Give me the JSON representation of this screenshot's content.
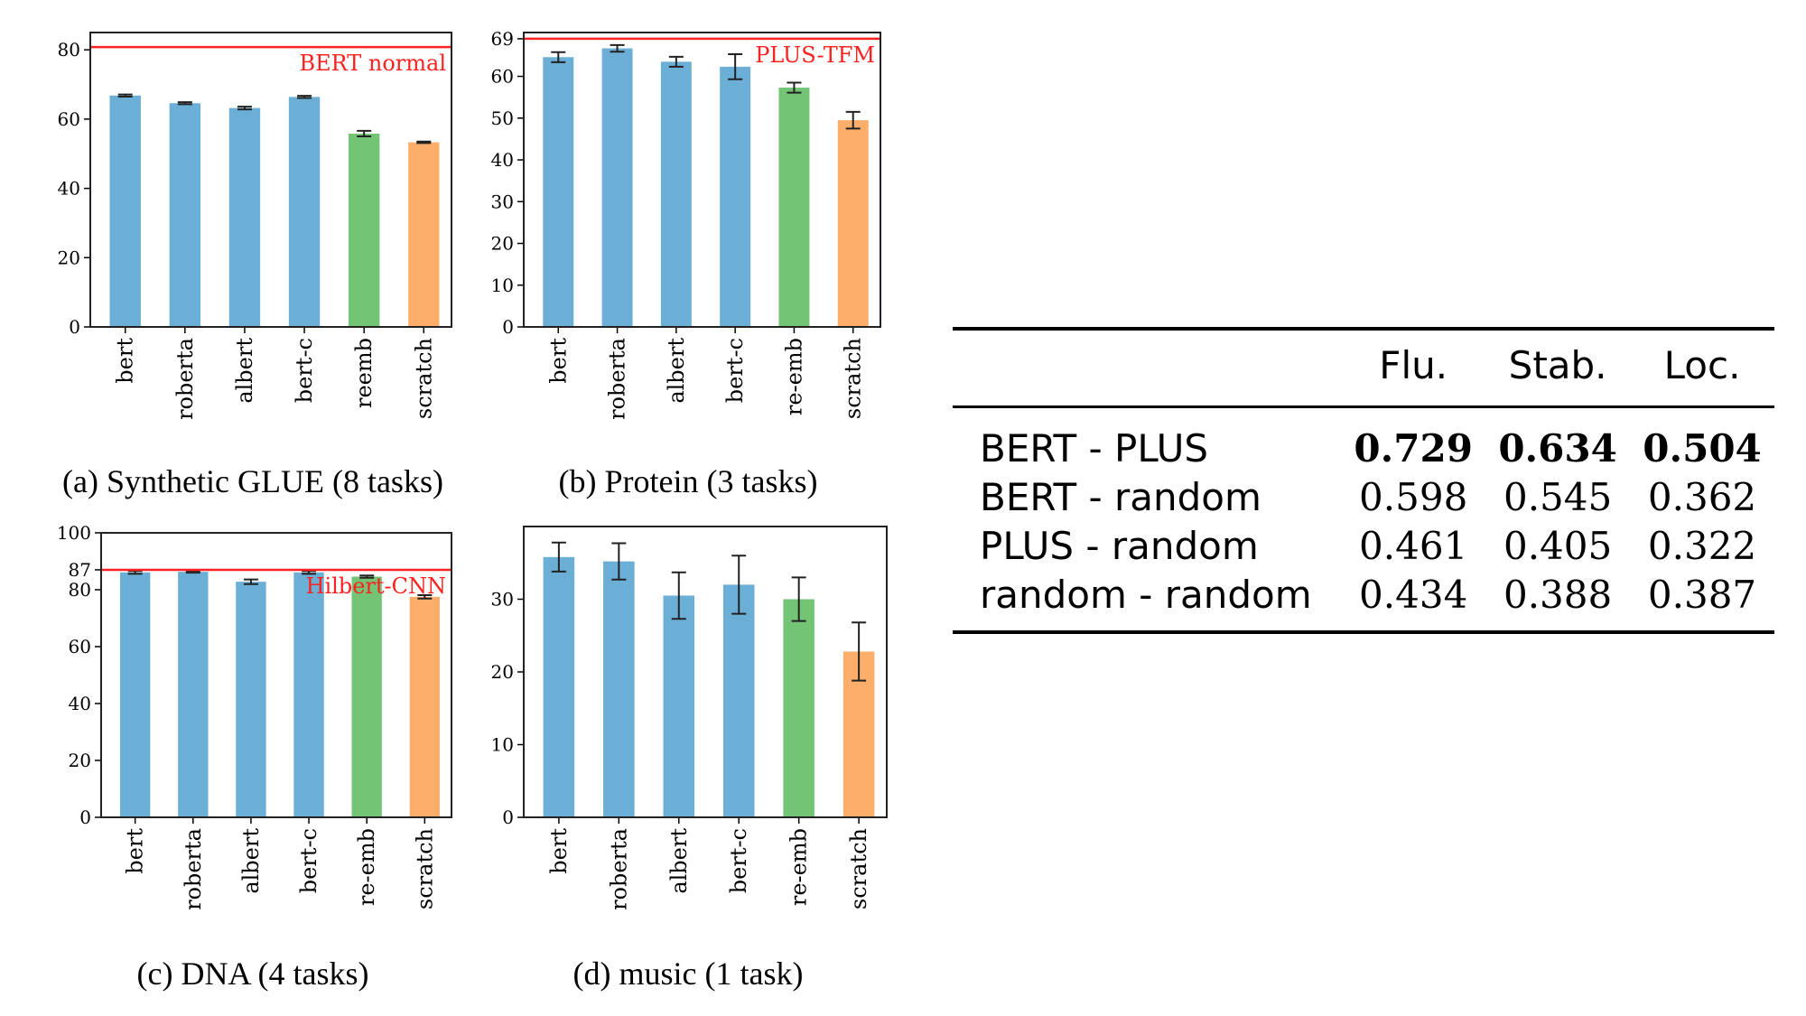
{
  "chart_data": [
    {
      "type": "bar",
      "caption": "(a) Synthetic GLUE (8 tasks)",
      "categories": [
        "bert",
        "roberta",
        "albert",
        "bert-c",
        "reemb",
        "scratch"
      ],
      "values": [
        66.8,
        64.6,
        63.2,
        66.4,
        55.8,
        53.3
      ],
      "errors": [
        0.3,
        0.3,
        0.4,
        0.3,
        0.8,
        0.2
      ],
      "colors": [
        "#6baed6",
        "#6baed6",
        "#6baed6",
        "#6baed6",
        "#74c476",
        "#fdae6b"
      ],
      "ylim": [
        0,
        85
      ],
      "yticks": [
        0,
        20,
        40,
        60,
        80
      ],
      "reference": {
        "label": "BERT normal",
        "value": 80.8,
        "color": "#ff2020"
      }
    },
    {
      "type": "bar",
      "caption": "(b) Protein (3 tasks)",
      "categories": [
        "bert",
        "roberta",
        "albert",
        "bert-c",
        "re-emb",
        "scratch"
      ],
      "values": [
        64.6,
        66.7,
        63.5,
        62.3,
        57.3,
        49.5
      ],
      "errors": [
        1.2,
        0.8,
        1.2,
        3.0,
        1.2,
        2.0
      ],
      "colors": [
        "#6baed6",
        "#6baed6",
        "#6baed6",
        "#6baed6",
        "#74c476",
        "#fdae6b"
      ],
      "ylim": [
        0,
        70.5
      ],
      "yticks": [
        0,
        10,
        20,
        30,
        40,
        50,
        60,
        69
      ],
      "reference": {
        "label": "PLUS-TFM",
        "value": 69,
        "color": "#ff2020"
      }
    },
    {
      "type": "bar",
      "caption": "(c) DNA (4 tasks)",
      "categories": [
        "bert",
        "roberta",
        "albert",
        "bert-c",
        "re-emb",
        "scratch"
      ],
      "values": [
        86.1,
        86.3,
        82.8,
        86.1,
        84.6,
        77.5
      ],
      "errors": [
        0.5,
        0.3,
        0.8,
        0.5,
        0.4,
        0.6
      ],
      "colors": [
        "#6baed6",
        "#6baed6",
        "#6baed6",
        "#6baed6",
        "#74c476",
        "#fdae6b"
      ],
      "ylim": [
        0,
        100
      ],
      "yticks": [
        0,
        20,
        40,
        60,
        80,
        87,
        100
      ],
      "reference": {
        "label": "Hilbert-CNN",
        "value": 87,
        "color": "#ff2020"
      }
    },
    {
      "type": "bar",
      "caption": "(d) music (1 task)",
      "categories": [
        "bert",
        "roberta",
        "albert",
        "bert-c",
        "re-emb",
        "scratch"
      ],
      "values": [
        35.8,
        35.2,
        30.5,
        32.0,
        30.0,
        22.8
      ],
      "errors": [
        2.0,
        2.5,
        3.2,
        4.0,
        3.0,
        4.0
      ],
      "colors": [
        "#6baed6",
        "#6baed6",
        "#6baed6",
        "#6baed6",
        "#74c476",
        "#fdae6b"
      ],
      "ylim": [
        0,
        40
      ],
      "yticks": [
        0,
        10,
        20,
        30
      ],
      "reference": null
    },
    {
      "type": "table",
      "columns": [
        "",
        "Flu.",
        "Stab.",
        "Loc."
      ],
      "rows": [
        {
          "name": "BERT - PLUS",
          "values": [
            "0.729",
            "0.634",
            "0.504"
          ],
          "bold": true
        },
        {
          "name": "BERT - random",
          "values": [
            "0.598",
            "0.545",
            "0.362"
          ],
          "bold": false
        },
        {
          "name": "PLUS - random",
          "values": [
            "0.461",
            "0.405",
            "0.322"
          ],
          "bold": false
        },
        {
          "name": "random - random",
          "values": [
            "0.434",
            "0.388",
            "0.387"
          ],
          "bold": false
        }
      ]
    }
  ]
}
